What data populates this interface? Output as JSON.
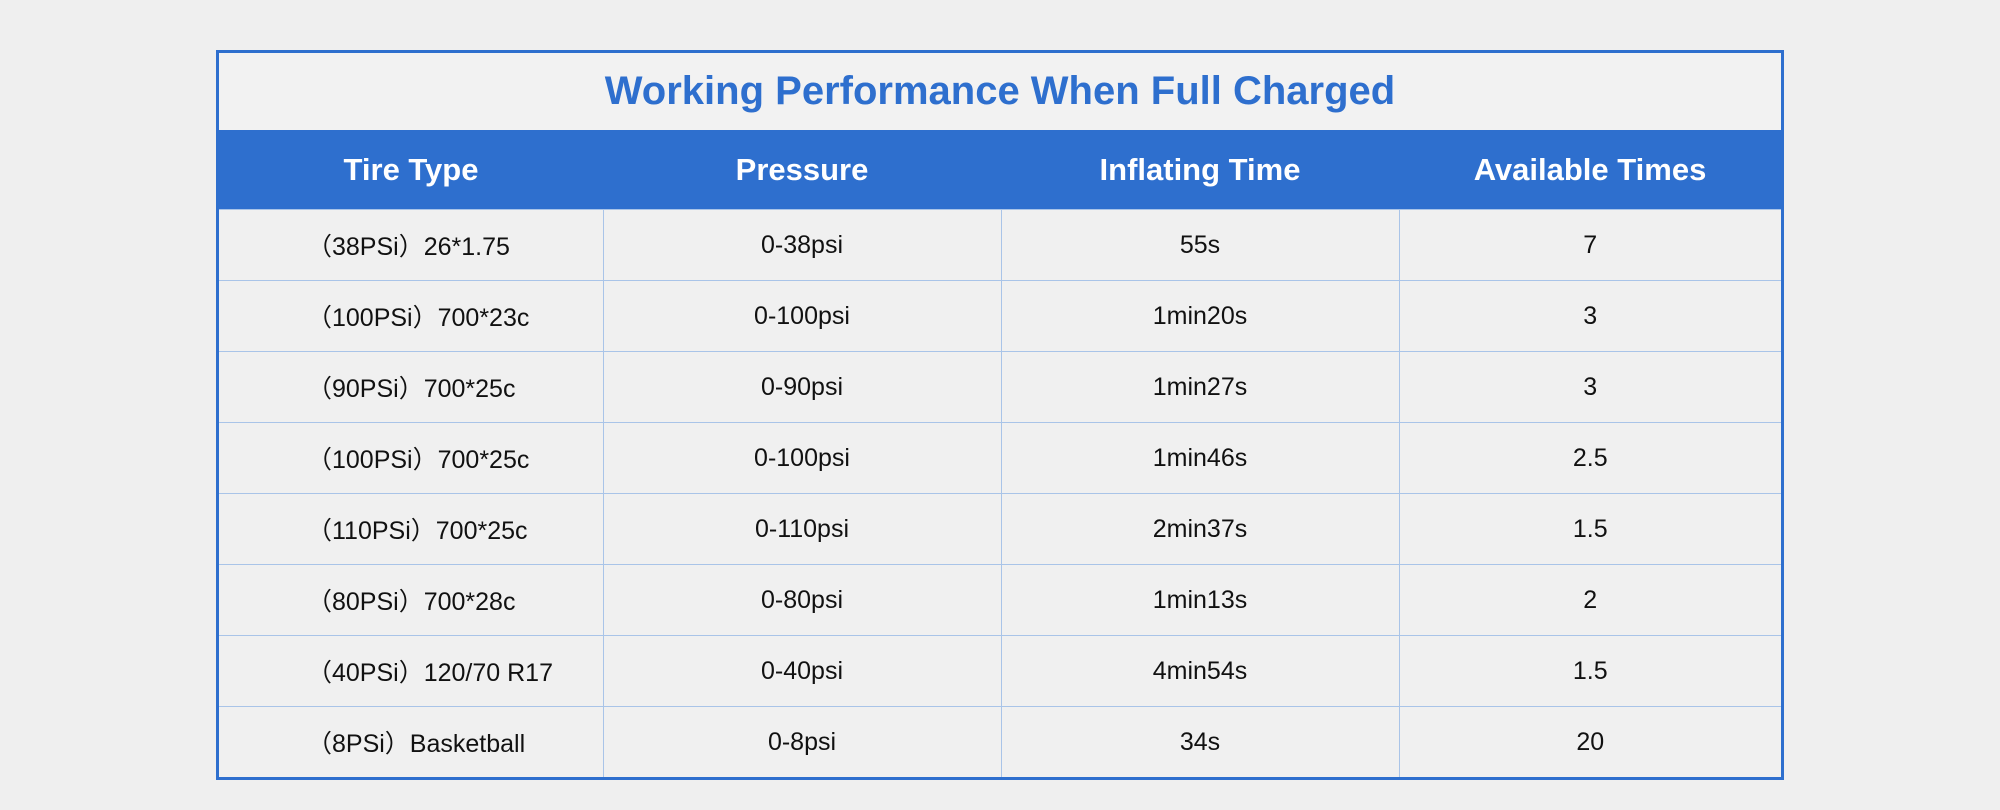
{
  "table": {
    "title": "Working Performance When Full Charged",
    "header": [
      "Tire Type",
      "Pressure",
      "Inflating Time",
      "Available Times"
    ],
    "rows": [
      [
        "（38PSi）26*1.75",
        "0-38psi",
        "55s",
        "7"
      ],
      [
        "（100PSi）700*23c",
        "0-100psi",
        "1min20s",
        "3"
      ],
      [
        "（90PSi）700*25c",
        "0-90psi",
        "1min27s",
        "3"
      ],
      [
        "（100PSi）700*25c",
        "0-100psi",
        "1min46s",
        "2.5"
      ],
      [
        "（110PSi）700*25c",
        "0-110psi",
        "2min37s",
        "1.5"
      ],
      [
        "（80PSi）700*28c",
        "0-80psi",
        "1min13s",
        "2"
      ],
      [
        "（40PSi）120/70 R17",
        "0-40psi",
        "4min54s",
        "1.5"
      ],
      [
        "（8PSi）Basketball",
        "0-8psi",
        "34s",
        "20"
      ]
    ]
  }
}
